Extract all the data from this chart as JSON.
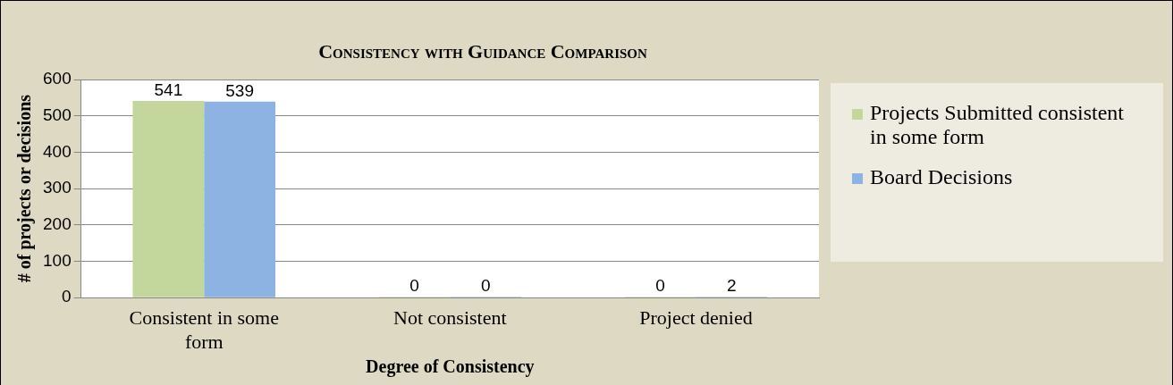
{
  "chart_data": {
    "type": "bar",
    "title": "Consistency with Guidance Comparison",
    "xlabel": "Degree of Consistency",
    "ylabel": "# of projects or decisions",
    "categories": [
      "Consistent in some form",
      "Not consistent",
      "Project denied"
    ],
    "series": [
      {
        "name": "Projects Submitted consistent in some form",
        "color": "#c3d69b",
        "values": [
          541,
          0,
          0
        ]
      },
      {
        "name": "Board Decisions",
        "color": "#8db3e2",
        "values": [
          539,
          0,
          2
        ]
      }
    ],
    "ylim": [
      0,
      600
    ],
    "yticks": [
      0,
      100,
      200,
      300,
      400,
      500,
      600
    ],
    "grid": "y",
    "legend": "right",
    "data_labels": true
  }
}
